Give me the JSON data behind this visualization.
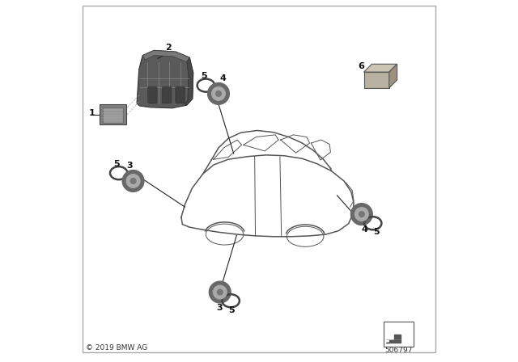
{
  "background_color": "#ffffff",
  "copyright_text": "© 2019 BMW AG",
  "part_number": "506797",
  "fig_width": 6.4,
  "fig_height": 4.48,
  "dpi": 100,
  "line_color": "#333333",
  "part_color": "#707070",
  "text_color": "#111111",
  "car_outline_color": "#555555",
  "bracket_color": "#606060",
  "sensor_color": "#686868",
  "sensor_face_color": "#999999",
  "ecu_color": "#808080",
  "box6_face": "#b8b0a0",
  "box6_top": "#ccc4b4",
  "box6_right": "#a09080"
}
